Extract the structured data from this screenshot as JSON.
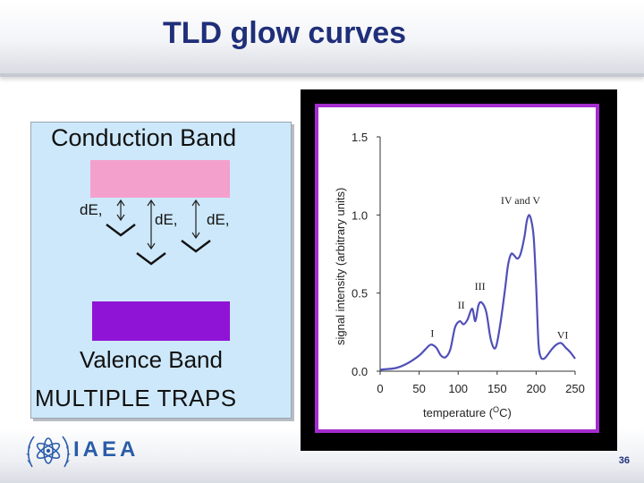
{
  "slide": {
    "title": "TLD glow curves",
    "logo_text": "IAEA",
    "page_number": "36"
  },
  "diagram": {
    "conduction_band_label": "Conduction Band",
    "valence_band_label": "Valence Band",
    "caption": "MULTIPLE TRAPS",
    "trap_labels": [
      "dE,",
      "dE,",
      "dE,"
    ],
    "colors": {
      "panel": "#cde8fa",
      "conduction_band": "#f4a0cc",
      "valence_band": "#8f14d6"
    }
  },
  "chart_data": {
    "type": "line",
    "title": "",
    "xlabel": "temperature (",
    "xlabel_sup": "O",
    "xlabel_end": "C)",
    "ylabel": "signal intensity (arbitrary units)",
    "xlim": [
      0,
      250
    ],
    "ylim": [
      0,
      1.5
    ],
    "xticks": [
      0,
      50,
      100,
      150,
      200,
      250
    ],
    "xtick_labels": [
      "0",
      "50",
      "100",
      "150",
      "200",
      "250"
    ],
    "yticks": [
      0,
      0.5,
      1.0,
      1.5
    ],
    "ytick_labels": [
      "0.0",
      "0.5",
      "1.0",
      "1.5"
    ],
    "grid": false,
    "series": [
      {
        "x": [
          0,
          20,
          35,
          50,
          58,
          65,
          72,
          78,
          84,
          90,
          96,
          102,
          107,
          112,
          118,
          122,
          126,
          130,
          136,
          142,
          148,
          154,
          160,
          164,
          168,
          172,
          176,
          180,
          185,
          188,
          191,
          194,
          197,
          200,
          203,
          206,
          210,
          214,
          220,
          226,
          232,
          238,
          244,
          250
        ],
        "y": [
          0.01,
          0.02,
          0.05,
          0.1,
          0.14,
          0.17,
          0.15,
          0.1,
          0.09,
          0.14,
          0.28,
          0.32,
          0.3,
          0.33,
          0.4,
          0.32,
          0.42,
          0.44,
          0.38,
          0.2,
          0.15,
          0.3,
          0.52,
          0.68,
          0.75,
          0.74,
          0.72,
          0.75,
          0.86,
          0.96,
          1.0,
          0.96,
          0.85,
          0.55,
          0.18,
          0.09,
          0.08,
          0.1,
          0.14,
          0.17,
          0.18,
          0.15,
          0.12,
          0.08
        ]
      }
    ],
    "annotations": [
      {
        "text": "I",
        "x": 67,
        "y": 0.22
      },
      {
        "text": "II",
        "x": 104,
        "y": 0.4
      },
      {
        "text": "III",
        "x": 128,
        "y": 0.52
      },
      {
        "text": "IV and V",
        "x": 180,
        "y": 1.07
      },
      {
        "text": "VI",
        "x": 234,
        "y": 0.21
      }
    ],
    "colors": {
      "line": "#5050b8",
      "frame": "#a52cd0",
      "outer": "#000000"
    }
  }
}
